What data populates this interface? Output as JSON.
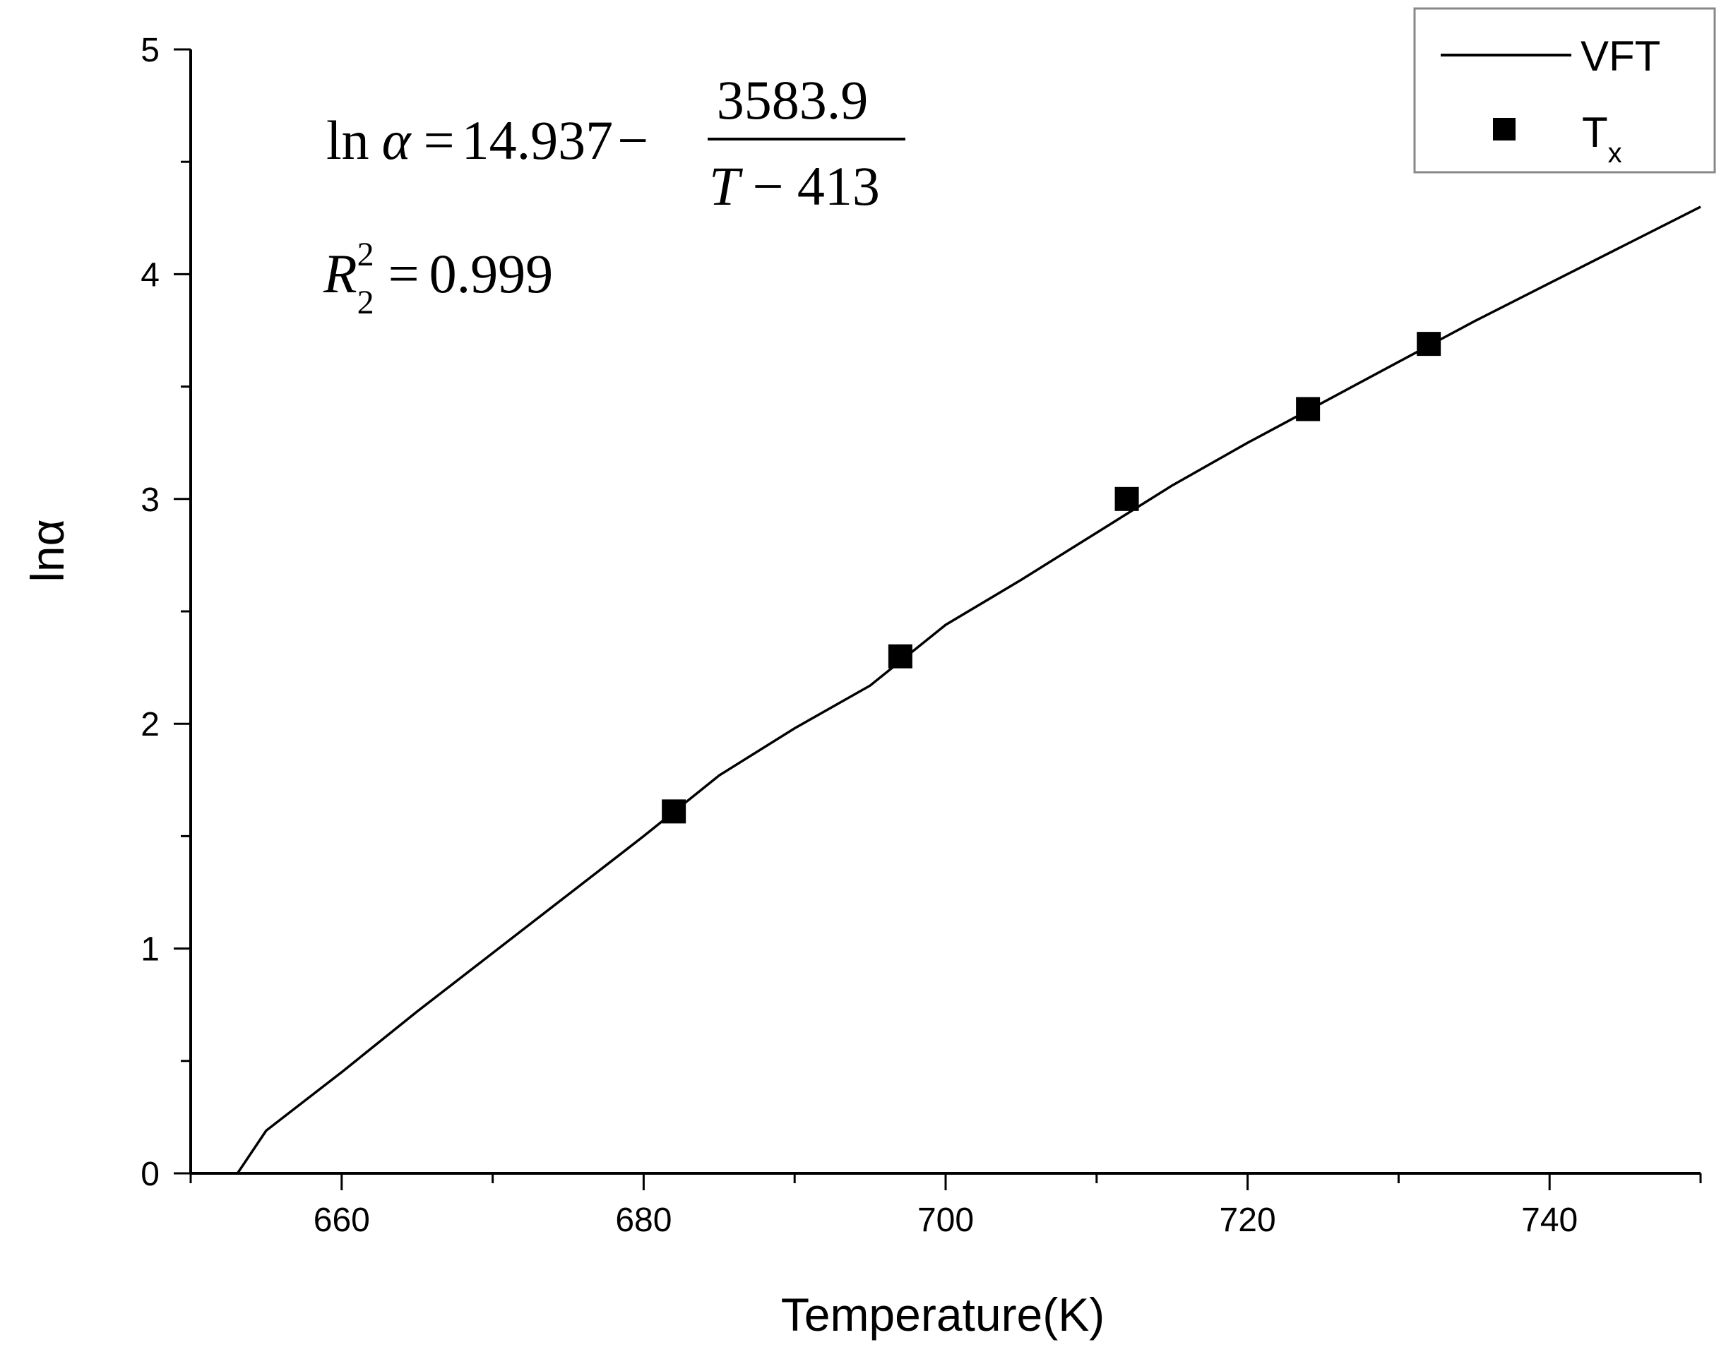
{
  "chart_data": {
    "type": "line",
    "title": "",
    "xlabel": "Temperature(K)",
    "ylabel": "lnα",
    "xlim": [
      650,
      750
    ],
    "ylim": [
      0,
      5
    ],
    "x_ticks": [
      660,
      680,
      700,
      720,
      740
    ],
    "y_ticks": [
      0,
      1,
      2,
      3,
      4,
      5
    ],
    "grid": false,
    "legend_position": "top-right",
    "series": [
      {
        "name": "VFT",
        "style": "line",
        "color": "#000000",
        "x": [
          653.1,
          655,
          660,
          665,
          670,
          675,
          680,
          685,
          690,
          695,
          700,
          705,
          710,
          715,
          720,
          725,
          730,
          735,
          740,
          745,
          750
        ],
        "y": [
          0.0,
          0.19,
          0.45,
          0.72,
          0.98,
          1.24,
          1.5,
          1.77,
          1.98,
          2.17,
          2.44,
          2.64,
          2.85,
          3.06,
          3.25,
          3.43,
          3.61,
          3.79,
          3.96,
          4.13,
          4.3
        ]
      },
      {
        "name": "T",
        "name_subscript": "x",
        "style": "square-marker",
        "color": "#000000",
        "x": [
          682,
          697,
          712,
          724,
          732
        ],
        "y": [
          1.61,
          2.3,
          3.0,
          3.4,
          3.69
        ]
      }
    ],
    "annotations": {
      "equation": {
        "lhs_fn": "ln",
        "lhs_var": "α",
        "equals": "=",
        "constant": "14.937",
        "minus": "−",
        "numerator": "3583.9",
        "den_var": "T",
        "den_rest": "− 413"
      },
      "r_squared": {
        "symbol": "R",
        "superscript": "2",
        "subscript": "2",
        "equals": "=",
        "value": "0.999"
      }
    }
  }
}
